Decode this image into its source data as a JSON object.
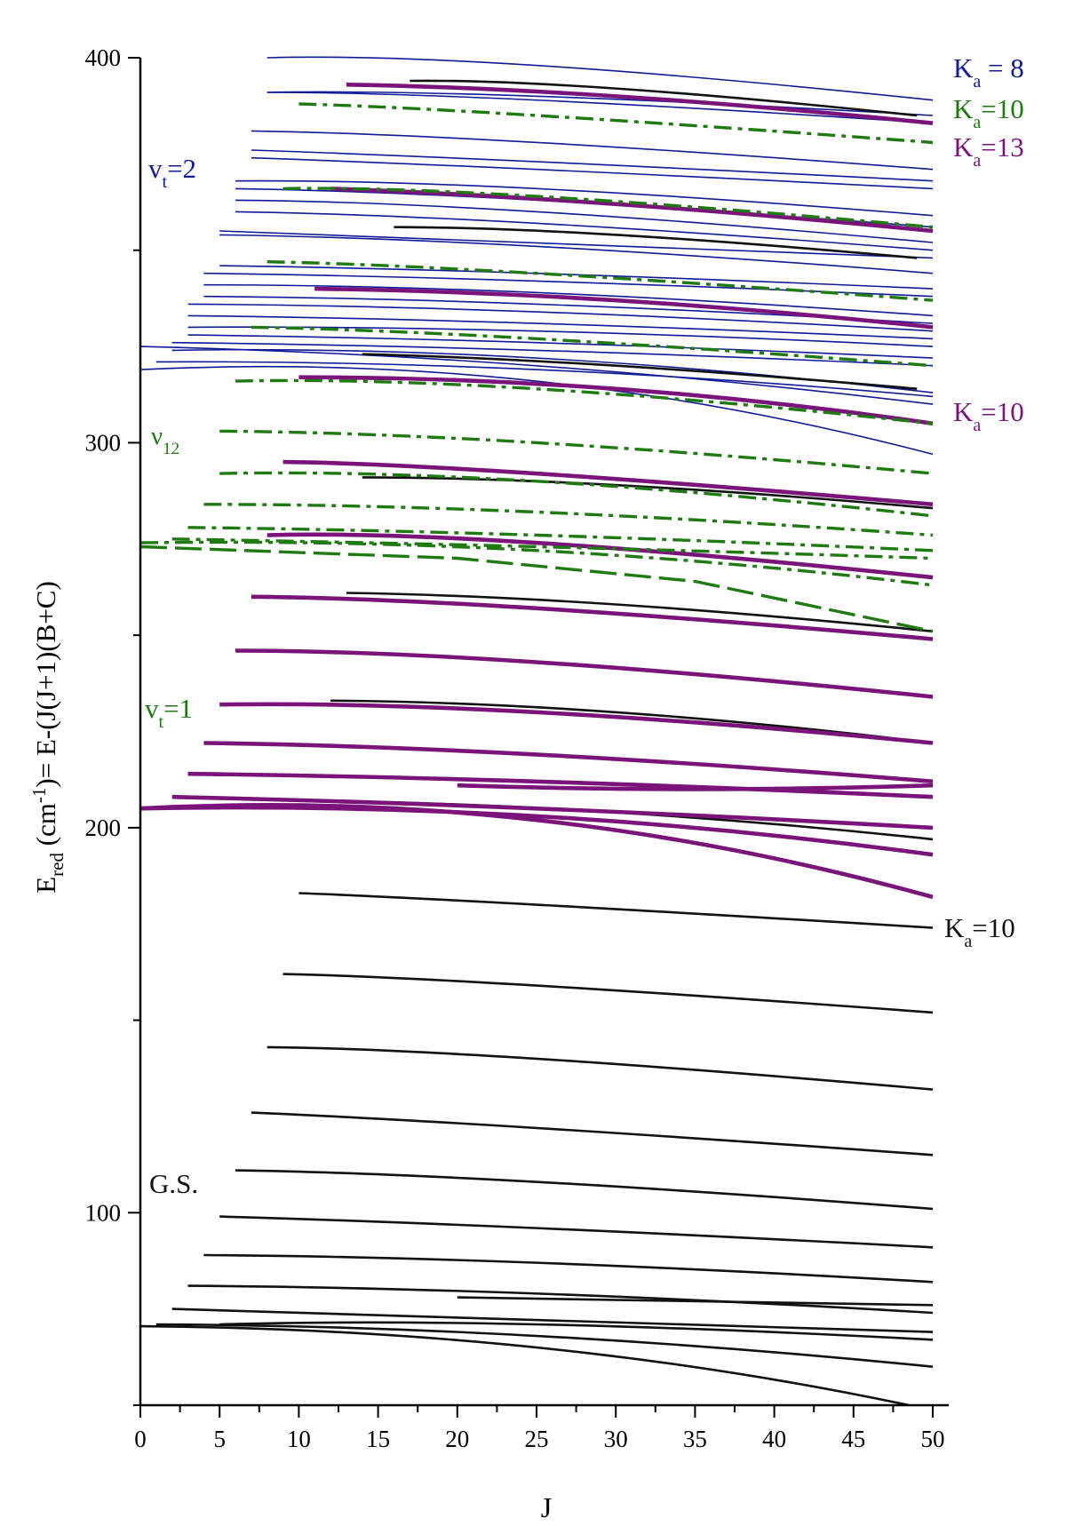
{
  "chart_data": {
    "type": "line",
    "title": "",
    "xlabel": "J",
    "ylabel_parts": [
      "E",
      "red",
      " (cm",
      "-1",
      ")= E-(J(J+1)(B+C)"
    ],
    "xlim": [
      0,
      50
    ],
    "ylim": [
      50,
      400
    ],
    "x_ticks": [
      0,
      5,
      10,
      15,
      20,
      25,
      30,
      35,
      40,
      45,
      50
    ],
    "y_ticks": [
      100,
      200,
      300,
      400
    ],
    "grid": false,
    "colors": {
      "gs": "#111111",
      "vt1": "#7a137a",
      "v12": "#1f7a12",
      "vt2": "#101a96",
      "axis": "#000000"
    },
    "annotations": [
      {
        "id": "gs",
        "main": "G.S.",
        "sub": "",
        "rest": "",
        "color_key": "gs"
      },
      {
        "id": "vt1",
        "main": "v",
        "sub": "t",
        "rest": "=1",
        "color_key": "v12"
      },
      {
        "id": "v12",
        "main": "ν",
        "sub": "12",
        "rest": "",
        "color_key": "v12"
      },
      {
        "id": "vt2",
        "main": "v",
        "sub": "t",
        "rest": "=2",
        "color_key": "vt2"
      },
      {
        "id": "ka8",
        "main": "K",
        "sub": "a",
        "rest": " = 8",
        "color_key": "vt2"
      },
      {
        "id": "ka10-green",
        "main": "K",
        "sub": "a",
        "rest": "=10",
        "color_key": "v12"
      },
      {
        "id": "ka13",
        "main": "K",
        "sub": "a",
        "rest": "=13",
        "color_key": "vt1"
      },
      {
        "id": "ka10-purple",
        "main": "K",
        "sub": "a",
        "rest": "=10",
        "color_key": "vt1"
      },
      {
        "id": "ka10-black",
        "main": "K",
        "sub": "a",
        "rest": "=10",
        "color_key": "gs"
      }
    ],
    "series": [
      {
        "name": "G.S. Ka=0",
        "group": "gs",
        "x": [
          0,
          25,
          48.5
        ],
        "y": [
          70.5,
          65,
          50
        ]
      },
      {
        "name": "G.S. Ka=1",
        "group": "gs",
        "x": [
          1,
          25,
          50
        ],
        "y": [
          71,
          68,
          60
        ]
      },
      {
        "name": "G.S. Ka=2",
        "group": "gs",
        "x": [
          2,
          25,
          50
        ],
        "y": [
          75,
          72,
          69
        ]
      },
      {
        "name": "G.S. Ka=2b",
        "group": "gs",
        "x": [
          5,
          25,
          50
        ],
        "y": [
          71,
          71,
          67
        ]
      },
      {
        "name": "G.S. Ka=3",
        "group": "gs",
        "x": [
          3,
          25,
          50
        ],
        "y": [
          81,
          79,
          74
        ]
      },
      {
        "name": "G.S. Ka=3b",
        "group": "gs",
        "x": [
          20,
          35,
          50
        ],
        "y": [
          78,
          77,
          76
        ]
      },
      {
        "name": "G.S. Ka=4",
        "group": "gs",
        "x": [
          4,
          25,
          50
        ],
        "y": [
          89,
          87,
          82
        ]
      },
      {
        "name": "G.S. Ka=5",
        "group": "gs",
        "x": [
          5,
          25,
          50
        ],
        "y": [
          99,
          96,
          91
        ]
      },
      {
        "name": "G.S. Ka=6",
        "group": "gs",
        "x": [
          6,
          25,
          50
        ],
        "y": [
          111,
          108,
          101
        ]
      },
      {
        "name": "G.S. Ka=7",
        "group": "gs",
        "x": [
          7,
          25,
          50
        ],
        "y": [
          126,
          122,
          115
        ]
      },
      {
        "name": "G.S. Ka=8",
        "group": "gs",
        "x": [
          8,
          25,
          50
        ],
        "y": [
          143,
          140,
          132
        ]
      },
      {
        "name": "G.S. Ka=9",
        "group": "gs",
        "x": [
          9,
          25,
          50
        ],
        "y": [
          162,
          159,
          152
        ]
      },
      {
        "name": "G.S. Ka=10",
        "group": "gs",
        "x": [
          10,
          25,
          50
        ],
        "y": [
          183,
          180,
          174
        ]
      },
      {
        "name": "G.S. Ka=11",
        "group": "gs",
        "x": [
          11,
          30,
          50
        ],
        "y": [
          207,
          204,
          197
        ]
      },
      {
        "name": "G.S. Ka=12",
        "group": "gs",
        "x": [
          12,
          30,
          50
        ],
        "y": [
          233,
          230,
          222
        ]
      },
      {
        "name": "G.S. Ka=13",
        "group": "gs",
        "x": [
          13,
          30,
          50
        ],
        "y": [
          261,
          258,
          251
        ]
      },
      {
        "name": "G.S. Ka=14",
        "group": "gs",
        "x": [
          14,
          30,
          50
        ],
        "y": [
          291,
          289,
          283
        ]
      },
      {
        "name": "G.S. Ka=15",
        "group": "gs",
        "x": [
          14,
          30,
          49
        ],
        "y": [
          323,
          320,
          314
        ]
      },
      {
        "name": "G.S. Ka=16",
        "group": "gs",
        "x": [
          16,
          30,
          49
        ],
        "y": [
          356,
          354,
          348
        ]
      },
      {
        "name": "G.S. Ka=17",
        "group": "gs",
        "x": [
          17,
          30,
          49
        ],
        "y": [
          394,
          392,
          385
        ]
      },
      {
        "name": "vt=1 Ka=0",
        "group": "vt1",
        "x": [
          0,
          25,
          50
        ],
        "y": [
          205,
          202,
          182
        ]
      },
      {
        "name": "vt=1 Ka=1",
        "group": "vt1",
        "x": [
          0,
          25,
          50
        ],
        "y": [
          205,
          203,
          193
        ]
      },
      {
        "name": "vt=1 Ka=2",
        "group": "vt1",
        "x": [
          2,
          25,
          50
        ],
        "y": [
          208,
          205,
          200
        ]
      },
      {
        "name": "vt=1 Ka=3",
        "group": "vt1",
        "x": [
          3,
          25,
          50
        ],
        "y": [
          214,
          212,
          208
        ]
      },
      {
        "name": "vt=1 Ka=3b",
        "group": "vt1",
        "x": [
          20,
          35,
          50
        ],
        "y": [
          211,
          210,
          211
        ]
      },
      {
        "name": "vt=1 Ka=4",
        "group": "vt1",
        "x": [
          4,
          25,
          50
        ],
        "y": [
          222,
          219,
          212
        ]
      },
      {
        "name": "vt=1 Ka=5",
        "group": "vt1",
        "x": [
          5,
          25,
          50
        ],
        "y": [
          232,
          230,
          222
        ]
      },
      {
        "name": "vt=1 Ka=6",
        "group": "vt1",
        "x": [
          6,
          25,
          50
        ],
        "y": [
          246,
          243,
          234
        ]
      },
      {
        "name": "vt=1 Ka=7",
        "group": "vt1",
        "x": [
          7,
          25,
          50
        ],
        "y": [
          260,
          257,
          249
        ]
      },
      {
        "name": "vt=1 Ka=8",
        "group": "vt1",
        "x": [
          8,
          25,
          50
        ],
        "y": [
          276,
          274,
          265
        ]
      },
      {
        "name": "vt=1 Ka=9",
        "group": "vt1",
        "x": [
          9,
          25,
          50
        ],
        "y": [
          295,
          292,
          284
        ]
      },
      {
        "name": "vt=1 Ka=10",
        "group": "vt1",
        "x": [
          10,
          30,
          50
        ],
        "y": [
          317,
          314,
          305
        ]
      },
      {
        "name": "vt=1 Ka=11",
        "group": "vt1",
        "x": [
          11,
          30,
          50
        ],
        "y": [
          340,
          337,
          330
        ]
      },
      {
        "name": "vt=1 Ka=12",
        "group": "vt1",
        "x": [
          12,
          30,
          50
        ],
        "y": [
          366,
          362,
          355
        ]
      },
      {
        "name": "vt=1 Ka=13",
        "group": "vt1",
        "x": [
          13,
          30,
          50
        ],
        "y": [
          393,
          390,
          383
        ]
      },
      {
        "name": "v12 Ka=0",
        "group": "v12",
        "dash": "long",
        "x": [
          0,
          20,
          35,
          50
        ],
        "y": [
          273,
          270,
          264,
          251
        ]
      },
      {
        "name": "v12 Ka=1",
        "group": "v12",
        "dash": "dashdot",
        "x": [
          0,
          25,
          50
        ],
        "y": [
          274,
          272,
          263
        ]
      },
      {
        "name": "v12 Ka=2",
        "group": "v12",
        "dash": "dashdot",
        "x": [
          2,
          25,
          50
        ],
        "y": [
          275,
          273,
          270
        ]
      },
      {
        "name": "v12 Ka=3",
        "group": "v12",
        "dash": "dashdot",
        "x": [
          3,
          25,
          50
        ],
        "y": [
          278,
          276,
          272
        ]
      },
      {
        "name": "v12 Ka=4",
        "group": "v12",
        "dash": "dashdot",
        "x": [
          4,
          25,
          50
        ],
        "y": [
          284,
          282,
          276
        ]
      },
      {
        "name": "v12 Ka=5",
        "group": "v12",
        "dash": "dashdot",
        "x": [
          5,
          25,
          50
        ],
        "y": [
          292,
          290,
          281
        ]
      },
      {
        "name": "v12 Ka=6",
        "group": "v12",
        "dash": "dashdot",
        "x": [
          5,
          25,
          50
        ],
        "y": [
          303,
          300,
          292
        ]
      },
      {
        "name": "v12 Ka=7",
        "group": "v12",
        "dash": "dashdot",
        "x": [
          6,
          25,
          50
        ],
        "y": [
          316,
          314,
          305
        ]
      },
      {
        "name": "v12 Ka=8",
        "group": "v12",
        "dash": "dashdot",
        "x": [
          7,
          25,
          50
        ],
        "y": [
          330,
          327,
          320
        ]
      },
      {
        "name": "v12 Ka=9",
        "group": "v12",
        "dash": "dashdot",
        "x": [
          8,
          25,
          50
        ],
        "y": [
          347,
          344,
          337
        ]
      },
      {
        "name": "v12 Ka=10",
        "group": "v12",
        "dash": "dashdot",
        "x": [
          9,
          25,
          50
        ],
        "y": [
          366,
          364,
          356
        ]
      },
      {
        "name": "v12 Ka=11",
        "group": "v12",
        "dash": "dashdot",
        "x": [
          10,
          25,
          50
        ],
        "y": [
          388,
          385,
          378
        ]
      },
      {
        "name": "vt=2 a1",
        "group": "vt2",
        "x": [
          0,
          25,
          50
        ],
        "y": [
          319,
          316,
          297
        ]
      },
      {
        "name": "vt=2 a2",
        "group": "vt2",
        "x": [
          0,
          25,
          50
        ],
        "y": [
          325,
          320,
          310
        ]
      },
      {
        "name": "vt=2 a3",
        "group": "vt2",
        "x": [
          1,
          25,
          50
        ],
        "y": [
          321,
          319,
          312
        ]
      },
      {
        "name": "vt=2 a4",
        "group": "vt2",
        "x": [
          2,
          25,
          50
        ],
        "y": [
          324,
          322,
          313
        ]
      },
      {
        "name": "vt=2 b1",
        "group": "vt2",
        "x": [
          2,
          25,
          50
        ],
        "y": [
          326,
          324,
          320
        ]
      },
      {
        "name": "vt=2 b2",
        "group": "vt2",
        "x": [
          3,
          25,
          50
        ],
        "y": [
          328,
          326,
          322
        ]
      },
      {
        "name": "vt=2 b3",
        "group": "vt2",
        "x": [
          3,
          25,
          50
        ],
        "y": [
          330,
          329,
          325
        ]
      },
      {
        "name": "vt=2 c1",
        "group": "vt2",
        "x": [
          3,
          25,
          50
        ],
        "y": [
          333,
          331,
          327
        ]
      },
      {
        "name": "vt=2 c2",
        "group": "vt2",
        "x": [
          3,
          25,
          50
        ],
        "y": [
          336,
          334,
          329
        ]
      },
      {
        "name": "vt=2 c3",
        "group": "vt2",
        "x": [
          4,
          25,
          50
        ],
        "y": [
          338,
          336,
          331
        ]
      },
      {
        "name": "vt=2 d1",
        "group": "vt2",
        "x": [
          4,
          25,
          50
        ],
        "y": [
          341,
          339,
          333
        ]
      },
      {
        "name": "vt=2 d2",
        "group": "vt2",
        "x": [
          4,
          25,
          50
        ],
        "y": [
          344,
          342,
          338
        ]
      },
      {
        "name": "vt=2 d3",
        "group": "vt2",
        "x": [
          5,
          25,
          50
        ],
        "y": [
          346,
          344,
          340
        ]
      },
      {
        "name": "vt=2 e1",
        "group": "vt2",
        "x": [
          5,
          25,
          50
        ],
        "y": [
          355,
          352,
          348
        ]
      },
      {
        "name": "vt=2 e2",
        "group": "vt2",
        "x": [
          5,
          25,
          50
        ],
        "y": [
          354,
          351,
          344
        ]
      },
      {
        "name": "vt=2 e3",
        "group": "vt2",
        "x": [
          6,
          25,
          50
        ],
        "y": [
          360,
          357,
          350
        ]
      },
      {
        "name": "vt=2 f1",
        "group": "vt2",
        "x": [
          6,
          25,
          50
        ],
        "y": [
          363,
          360,
          352
        ]
      },
      {
        "name": "vt=2 f2",
        "group": "vt2",
        "x": [
          6,
          25,
          50
        ],
        "y": [
          366,
          363,
          356
        ]
      },
      {
        "name": "vt=2 g1",
        "group": "vt2",
        "x": [
          6,
          25,
          50
        ],
        "y": [
          368,
          366,
          359
        ]
      },
      {
        "name": "vt=2 g2",
        "group": "vt2",
        "x": [
          7,
          25,
          50
        ],
        "y": [
          374,
          371,
          366
        ]
      },
      {
        "name": "vt=2 g3",
        "group": "vt2",
        "x": [
          7,
          25,
          50
        ],
        "y": [
          376,
          373,
          368
        ]
      },
      {
        "name": "vt=2 h1",
        "group": "vt2",
        "x": [
          7,
          25,
          50
        ],
        "y": [
          381,
          378,
          371
        ]
      },
      {
        "name": "vt=2 h2",
        "group": "vt2",
        "x": [
          8,
          25,
          50
        ],
        "y": [
          391,
          390,
          385
        ]
      },
      {
        "name": "vt=2 h3",
        "group": "vt2",
        "x": [
          8,
          25,
          50
        ],
        "y": [
          391,
          389,
          383
        ]
      },
      {
        "name": "vt=2 i1",
        "group": "vt2",
        "x": [
          8,
          25,
          50
        ],
        "y": [
          400,
          398,
          389
        ]
      }
    ]
  }
}
